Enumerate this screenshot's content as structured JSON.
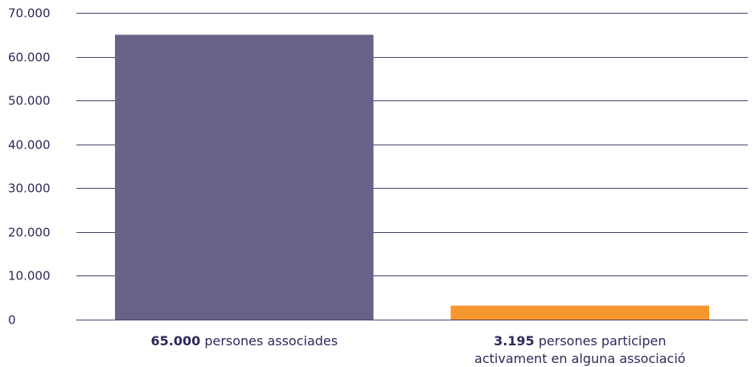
{
  "chart_data": {
    "type": "bar",
    "title": "",
    "xlabel": "",
    "ylabel": "",
    "ylim": [
      0,
      70000
    ],
    "y_ticks": [
      0,
      10000,
      20000,
      30000,
      40000,
      50000,
      60000,
      70000
    ],
    "y_tick_labels": [
      "0",
      "10.000",
      "20.000",
      "30.000",
      "40.000",
      "50.000",
      "60.000",
      "70.000"
    ],
    "grid": true,
    "categories": [
      {
        "bold": "65.000",
        "text": " persones associades",
        "line2": ""
      },
      {
        "bold": "3.195",
        "text": " persones participen",
        "line2": "activament en alguna associació"
      }
    ],
    "values": [
      65000,
      3195
    ],
    "colors": [
      "#6a6186",
      "#f7962f"
    ],
    "gridline_color": "#45406e",
    "text_color": "#2c2a5a"
  }
}
